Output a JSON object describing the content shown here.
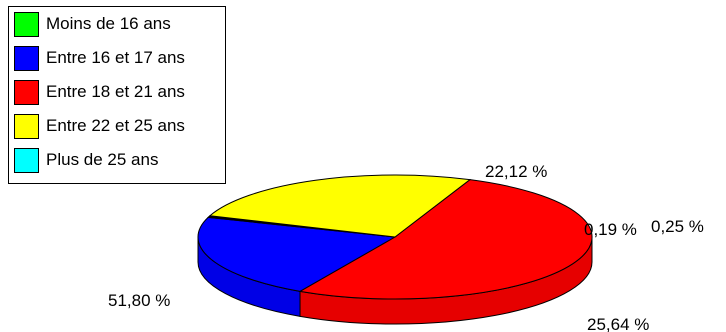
{
  "chart_data": {
    "type": "pie",
    "style": "3d",
    "legend_position": "top-left",
    "slices": [
      {
        "label": "Moins de 16 ans",
        "value": 0.25,
        "value_label": "0,25 %",
        "color": "#00ff00"
      },
      {
        "label": "Entre 16 et 17 ans",
        "value": 22.12,
        "value_label": "22,12 %",
        "color": "#0000ff"
      },
      {
        "label": "Entre 18 et 21 ans",
        "value": 51.8,
        "value_label": "51,80 %",
        "color": "#ff0000"
      },
      {
        "label": "Entre 22 et 25 ans",
        "value": 25.64,
        "value_label": "25,64 %",
        "color": "#ffff00"
      },
      {
        "label": "Plus de 25 ans",
        "value": 0.19,
        "value_label": "0,19 %",
        "color": "#00ffff"
      }
    ]
  }
}
